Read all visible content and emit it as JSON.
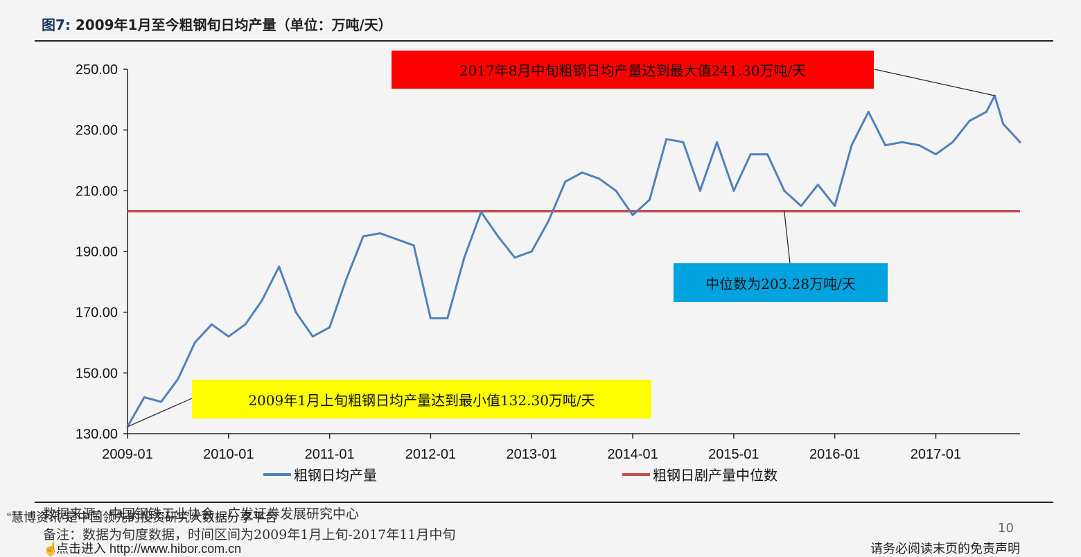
{
  "header": {
    "fig_no": "图7:",
    "title": "2009年1月至今粗钢旬日均产量（单位：万吨/天）"
  },
  "callouts": {
    "max": "2017年8月中旬粗钢日均产量达到最大值241.30万吨/天",
    "median": "中位数为203.28万吨/天",
    "min": "2009年1月上旬粗钢日均产量达到最小值132.30万吨/天"
  },
  "footer": {
    "source": "数据来源：中国钢铁工业协会，广发证券发展研究中心",
    "note": "备注：数据为旬度数据，时间区间为2009年1月上旬-2017年11月中旬",
    "page": "10",
    "disclaimer": "请务必阅读末页的免责声明",
    "watermark_brand": "慧博资讯",
    "watermark_text": "“慧博资讯”是中国领先的投资研究大数据分享平台",
    "watermark_link": "点击进入 http://www.hibor.com.cn"
  },
  "colors": {
    "series": "#4f81bd",
    "median": "#c0504d",
    "max_box": "#ff0000",
    "median_box": "#00a2e0",
    "min_box": "#ffff00"
  },
  "chart_data": {
    "type": "line",
    "title": "2009年1月至今粗钢旬日均产量（单位：万吨/天）",
    "x_tick_labels": [
      "2009-01",
      "2010-01",
      "2011-01",
      "2012-01",
      "2013-01",
      "2014-01",
      "2015-01",
      "2016-01",
      "2017-01"
    ],
    "y_tick_labels": [
      "130.00",
      "150.00",
      "170.00",
      "190.00",
      "210.00",
      "230.00",
      "250.00"
    ],
    "ylim": [
      130,
      250
    ],
    "x_range": [
      "2009-01",
      "2017-11"
    ],
    "grid": false,
    "legend_position": "bottom",
    "series": [
      {
        "name": "粗钢日均产量",
        "x": [
          "2009-01",
          "2009-03",
          "2009-05",
          "2009-07",
          "2009-09",
          "2009-11",
          "2010-01",
          "2010-03",
          "2010-05",
          "2010-07",
          "2010-09",
          "2010-11",
          "2011-01",
          "2011-03",
          "2011-05",
          "2011-07",
          "2011-09",
          "2011-11",
          "2012-01",
          "2012-03",
          "2012-05",
          "2012-07",
          "2012-09",
          "2012-11",
          "2013-01",
          "2013-03",
          "2013-05",
          "2013-07",
          "2013-09",
          "2013-11",
          "2014-01",
          "2014-03",
          "2014-05",
          "2014-07",
          "2014-09",
          "2014-11",
          "2015-01",
          "2015-03",
          "2015-05",
          "2015-07",
          "2015-09",
          "2015-11",
          "2016-01",
          "2016-03",
          "2016-05",
          "2016-07",
          "2016-09",
          "2016-11",
          "2017-01",
          "2017-03",
          "2017-05",
          "2017-07",
          "2017-08",
          "2017-09",
          "2017-11"
        ],
        "values": [
          132.3,
          142.0,
          140.5,
          148.0,
          160.0,
          166.0,
          162.0,
          166.0,
          174.0,
          185.0,
          170.0,
          162.0,
          165.0,
          181.0,
          195.0,
          196.0,
          194.0,
          192.0,
          168.0,
          168.0,
          188.0,
          203.0,
          195.0,
          188.0,
          190.0,
          200.0,
          213.0,
          216.0,
          214.0,
          210.0,
          202.0,
          207.0,
          227.0,
          226.0,
          210.0,
          226.0,
          210.0,
          222.0,
          222.0,
          210.0,
          205.0,
          212.0,
          205.0,
          225.0,
          236.0,
          225.0,
          226.0,
          225.0,
          222.0,
          226.0,
          233.0,
          236.0,
          241.3,
          232.0,
          226.0
        ]
      },
      {
        "name": "粗钢日剧产量中位数",
        "x": [
          "2009-01",
          "2017-11"
        ],
        "values": [
          203.28,
          203.28
        ]
      }
    ],
    "annotations": [
      {
        "x": "2017-08",
        "value": 241.3,
        "box": "max"
      },
      {
        "x": "2015-07",
        "value": 203.28,
        "box": "median"
      },
      {
        "x": "2009-01",
        "value": 132.3,
        "box": "min"
      }
    ]
  }
}
